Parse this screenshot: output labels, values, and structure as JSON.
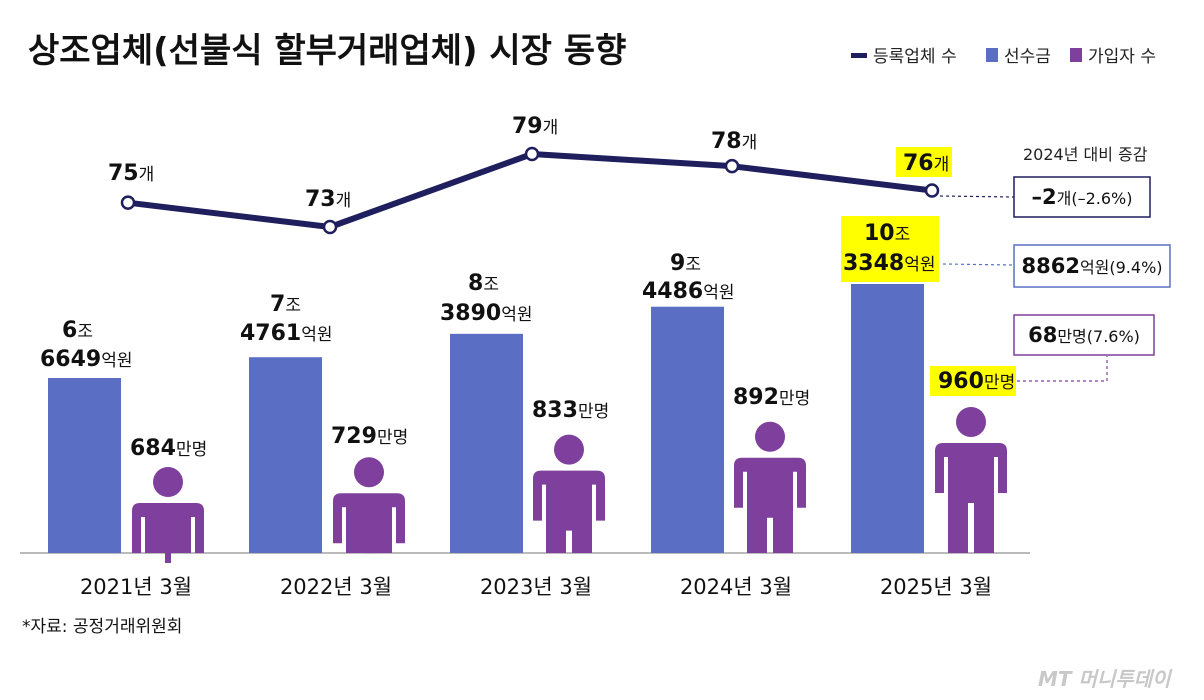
{
  "chart_data": {
    "type": "bar",
    "title": "상조업체(선불식 할부거래업체) 시장 동향",
    "categories": [
      "2021년 3월",
      "2022년 3월",
      "2023년 3월",
      "2024년 3월",
      "2025년 3월"
    ],
    "legend": [
      "등록업체 수",
      "선수금",
      "가입자 수"
    ],
    "series": [
      {
        "name": "등록업체 수",
        "kind": "line",
        "values": [
          75,
          73,
          79,
          78,
          76
        ],
        "unit": "개",
        "labels": [
          [
            "75",
            "개"
          ],
          [
            "73",
            "개"
          ],
          [
            "79",
            "개"
          ],
          [
            "78",
            "개"
          ],
          [
            "76",
            "개"
          ]
        ]
      },
      {
        "name": "선수금",
        "kind": "bar",
        "unit": "억원",
        "values": [
          66649,
          74761,
          83890,
          94486,
          103348
        ],
        "labels": [
          [
            [
              "6",
              "조"
            ],
            [
              "6649",
              "억원"
            ]
          ],
          [
            [
              "7",
              "조"
            ],
            [
              "4761",
              "억원"
            ]
          ],
          [
            [
              "8",
              "조"
            ],
            [
              "3890",
              "억원"
            ]
          ],
          [
            [
              "9",
              "조"
            ],
            [
              "4486",
              "억원"
            ]
          ],
          [
            [
              "10",
              "조"
            ],
            [
              "3348",
              "억원"
            ]
          ]
        ]
      },
      {
        "name": "가입자 수",
        "kind": "pictogram",
        "unit": "만명",
        "values": [
          684,
          729,
          833,
          892,
          960
        ],
        "labels": [
          [
            "684",
            "만명"
          ],
          [
            "729",
            "만명"
          ],
          [
            "833",
            "만명"
          ],
          [
            "892",
            "만명"
          ],
          [
            "960",
            "만명"
          ]
        ]
      }
    ],
    "comparison": {
      "title": "2024년 대비 증감",
      "items": [
        {
          "big": "–2",
          "rest": "개(–2.6%)"
        },
        {
          "big": "8862",
          "rest": "억원(9.4%)"
        },
        {
          "big": "68",
          "rest": "만명(7.6%)"
        }
      ]
    },
    "source": "*자료: 공정거래위원회",
    "watermark": "MT 머니투데이",
    "colors": {
      "line": "#1f1f5e",
      "bar": "#5a6fc4",
      "person": "#7e3f9d",
      "highlight": "#ffff00"
    }
  }
}
